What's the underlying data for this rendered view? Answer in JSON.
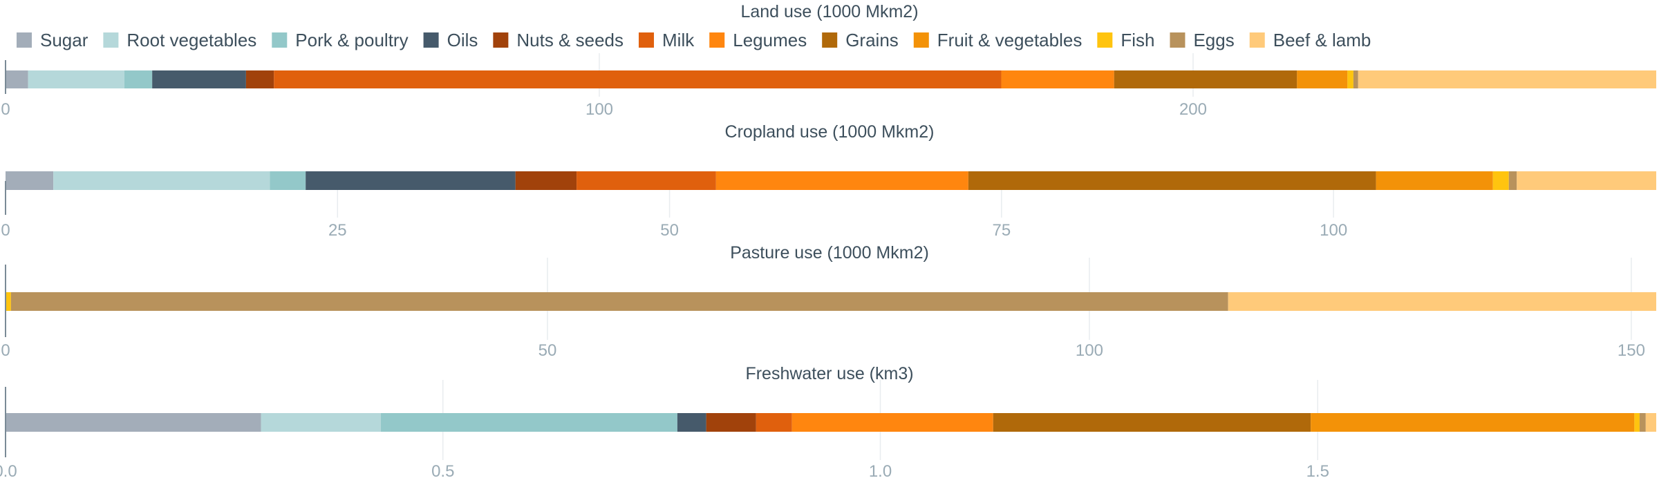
{
  "legend": [
    {
      "name": "Sugar",
      "color": "#a3adb9"
    },
    {
      "name": "Root vegetables",
      "color": "#b5d8da"
    },
    {
      "name": "Pork & poultry",
      "color": "#93c8c9"
    },
    {
      "name": "Oils",
      "color": "#465a6b"
    },
    {
      "name": "Nuts & seeds",
      "color": "#a1420b"
    },
    {
      "name": "Milk",
      "color": "#e0600d"
    },
    {
      "name": "Legumes",
      "color": "#ff860f"
    },
    {
      "name": "Grains",
      "color": "#b0690a"
    },
    {
      "name": "Fruit & vegetables",
      "color": "#f39208"
    },
    {
      "name": "Fish",
      "color": "#ffc40f"
    },
    {
      "name": "Eggs",
      "color": "#b8925c"
    },
    {
      "name": "Beef & lamb",
      "color": "#ffca7a"
    }
  ],
  "chart_data": [
    {
      "type": "bar",
      "stacked": true,
      "orientation": "horizontal",
      "title": "Land use (1000 Mkm2)",
      "xlim": [
        0,
        278
      ],
      "ticks": [
        0,
        100,
        200
      ],
      "tick_labels": [
        "0",
        "100",
        "200"
      ],
      "grid": true,
      "series": [
        {
          "name": "Sugar",
          "value": 3.8
        },
        {
          "name": "Root vegetables",
          "value": 16.2
        },
        {
          "name": "Pork & poultry",
          "value": 4.7
        },
        {
          "name": "Oils",
          "value": 15.8
        },
        {
          "name": "Nuts & seeds",
          "value": 4.7
        },
        {
          "name": "Milk",
          "value": 122.5
        },
        {
          "name": "Legumes",
          "value": 19.0
        },
        {
          "name": "Grains",
          "value": 30.8
        },
        {
          "name": "Fruit & vegetables",
          "value": 8.5
        },
        {
          "name": "Fish",
          "value": 1.0
        },
        {
          "name": "Eggs",
          "value": 0.8
        },
        {
          "name": "Beef & lamb",
          "value": 50.2
        }
      ]
    },
    {
      "type": "bar",
      "stacked": true,
      "orientation": "horizontal",
      "title": "Cropland use (1000 Mkm2)",
      "xlim": [
        0,
        124.3
      ],
      "ticks": [
        0,
        25,
        50,
        75,
        100
      ],
      "tick_labels": [
        "0",
        "25",
        "50",
        "75",
        "100"
      ],
      "grid": true,
      "series": [
        {
          "name": "Sugar",
          "value": 3.6
        },
        {
          "name": "Root vegetables",
          "value": 16.3
        },
        {
          "name": "Pork & poultry",
          "value": 2.7
        },
        {
          "name": "Oils",
          "value": 15.8
        },
        {
          "name": "Nuts & seeds",
          "value": 4.6
        },
        {
          "name": "Milk",
          "value": 10.5
        },
        {
          "name": "Legumes",
          "value": 19.0
        },
        {
          "name": "Grains",
          "value": 30.7
        },
        {
          "name": "Fruit & vegetables",
          "value": 8.8
        },
        {
          "name": "Fish",
          "value": 1.2
        },
        {
          "name": "Eggs",
          "value": 0.6
        },
        {
          "name": "Beef & lamb",
          "value": 10.5
        }
      ]
    },
    {
      "type": "bar",
      "stacked": true,
      "orientation": "horizontal",
      "title": "Pasture use (1000 Mkm2)",
      "xlim": [
        0,
        152.3
      ],
      "ticks": [
        0,
        50,
        100,
        150
      ],
      "tick_labels": [
        "0",
        "50",
        "100",
        "150"
      ],
      "grid": true,
      "series": [
        {
          "name": "Fish",
          "value": 0.5
        },
        {
          "name": "Eggs",
          "value": 112.3
        },
        {
          "name": "Beef & lamb",
          "value": 39.5
        }
      ]
    },
    {
      "type": "bar",
      "stacked": true,
      "orientation": "horizontal",
      "title": "Freshwater use (km3)",
      "xlim": [
        0,
        1.887
      ],
      "ticks": [
        0,
        0.5,
        1.0,
        1.5
      ],
      "tick_labels": [
        "0.0",
        "0.5",
        "1.0",
        "1.5"
      ],
      "grid": true,
      "series": [
        {
          "name": "Sugar",
          "value": 0.292
        },
        {
          "name": "Root vegetables",
          "value": 0.137
        },
        {
          "name": "Pork & poultry",
          "value": 0.339
        },
        {
          "name": "Oils",
          "value": 0.033
        },
        {
          "name": "Nuts & seeds",
          "value": 0.057
        },
        {
          "name": "Milk",
          "value": 0.041
        },
        {
          "name": "Legumes",
          "value": 0.23
        },
        {
          "name": "Grains",
          "value": 0.363
        },
        {
          "name": "Fruit & vegetables",
          "value": 0.37
        },
        {
          "name": "Fish",
          "value": 0.006
        },
        {
          "name": "Eggs",
          "value": 0.007
        },
        {
          "name": "Beef & lamb",
          "value": 0.012
        }
      ]
    }
  ]
}
